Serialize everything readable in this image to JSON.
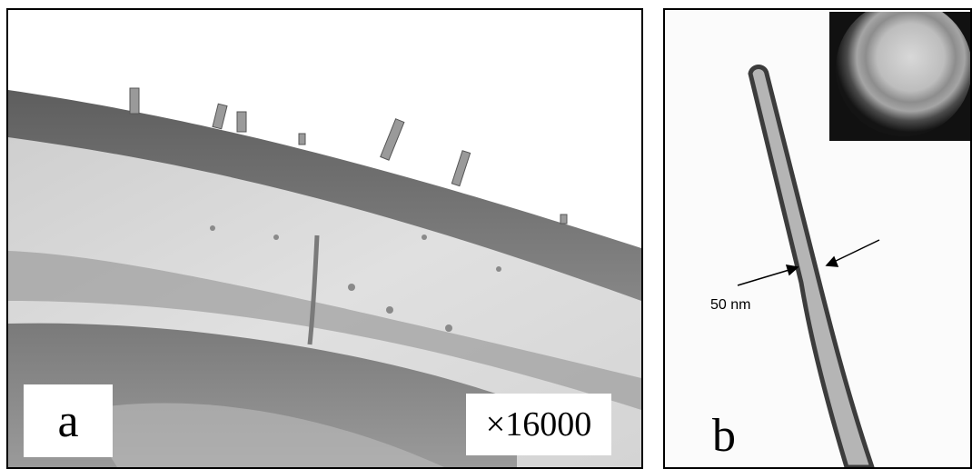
{
  "figure": {
    "panel_a": {
      "label": "a",
      "magnification": "×16000"
    },
    "panel_b": {
      "label": "b",
      "scale_text": "50 nm"
    }
  }
}
